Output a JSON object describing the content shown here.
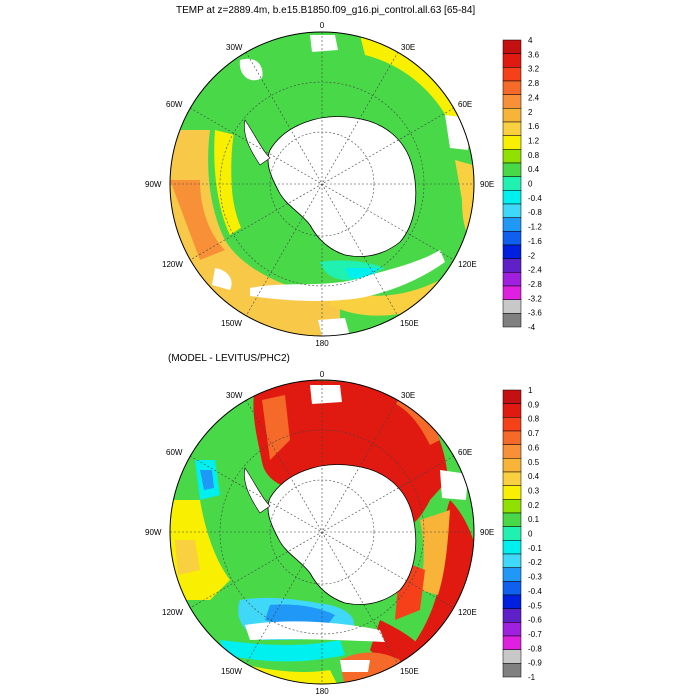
{
  "panel_top": {
    "title": "TEMP at z=2889.4m, b.e15.B1850.f09_g16.pi_control.all.63 [65-84]",
    "lon_labels": [
      "0",
      "30E",
      "60E",
      "90E",
      "120E",
      "150E",
      "180",
      "150W",
      "120W",
      "90W",
      "60W",
      "30W"
    ],
    "colorbar_labels": [
      "4",
      "3.6",
      "3.2",
      "2.8",
      "2.4",
      "2",
      "1.6",
      "1.2",
      "0.8",
      "0.4",
      "0",
      "-0.4",
      "-0.8",
      "-1.2",
      "-1.6",
      "-2",
      "-2.4",
      "-2.8",
      "-3.2",
      "-3.6",
      "-4"
    ],
    "colorbar_colors": [
      "#c41010",
      "#e01a10",
      "#f5401a",
      "#f56a28",
      "#f89038",
      "#f8b438",
      "#f8d040",
      "#f8f000",
      "#90e000",
      "#48d848",
      "#20f0b0",
      "#00f0f0",
      "#40d8f8",
      "#2098f8",
      "#1060f0",
      "#0020e0",
      "#6020c8",
      "#a020e0",
      "#e020e0",
      "#c8c8c8",
      "#808080"
    ]
  },
  "panel_bottom": {
    "title": "(MODEL - LEVITUS/PHC2)",
    "lon_labels": [
      "0",
      "30E",
      "60E",
      "90E",
      "120E",
      "150E",
      "180",
      "150W",
      "120W",
      "90W",
      "60W",
      "30W"
    ],
    "colorbar_labels": [
      "1",
      "0.9",
      "0.8",
      "0.7",
      "0.6",
      "0.5",
      "0.4",
      "0.3",
      "0.2",
      "0.1",
      "0",
      "-0.1",
      "-0.2",
      "-0.3",
      "-0.4",
      "-0.5",
      "-0.6",
      "-0.7",
      "-0.8",
      "-0.9",
      "-1"
    ],
    "colorbar_colors": [
      "#c41010",
      "#e01a10",
      "#f5401a",
      "#f56a28",
      "#f89038",
      "#f8b438",
      "#f8d040",
      "#f8f000",
      "#90e000",
      "#48d848",
      "#20f0b0",
      "#00f0f0",
      "#40d8f8",
      "#2098f8",
      "#1060f0",
      "#0020e0",
      "#6020c8",
      "#a020e0",
      "#e020e0",
      "#c8c8c8",
      "#808080"
    ]
  },
  "colors": {
    "land": "#ffffff",
    "coast": "#000000",
    "grid": "#444444"
  }
}
